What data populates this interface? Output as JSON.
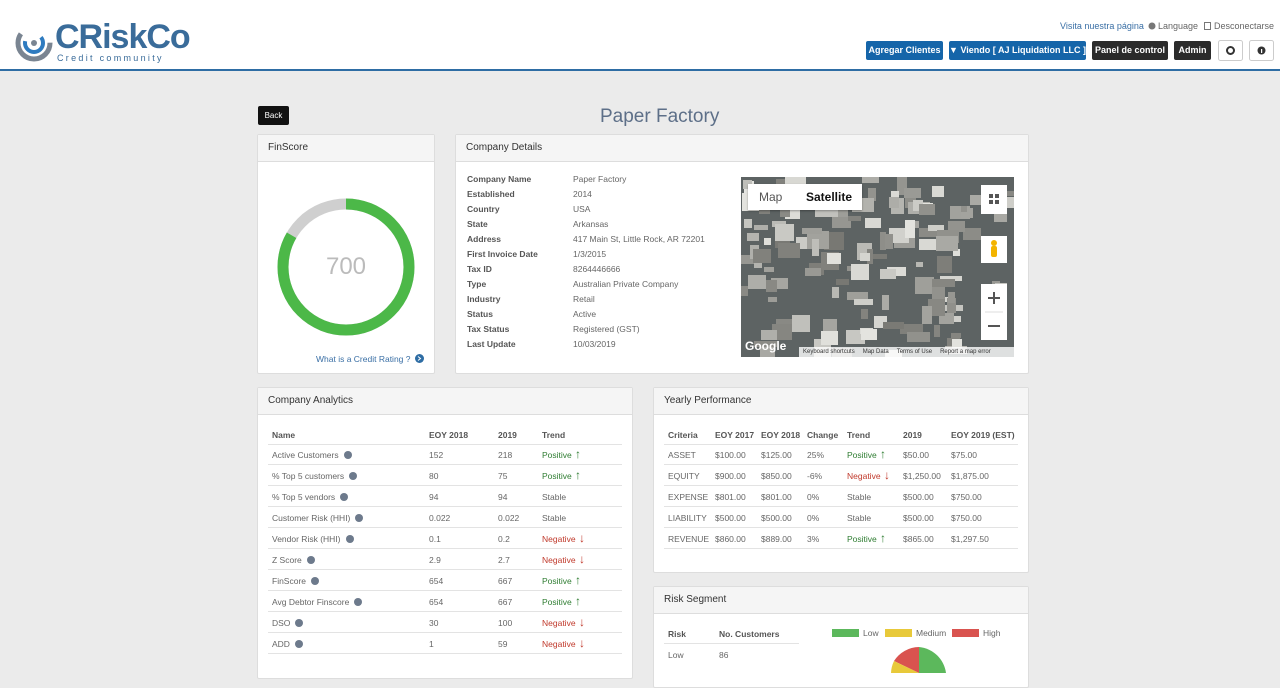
{
  "header": {
    "logo": "CRiskCo",
    "tagline": "Credit community",
    "links": [
      "Visita nuestra página",
      "Language",
      "Desconectarse"
    ],
    "buttons": [
      "Agregar Clientes",
      "▼ Viendo [ AJ Liquidation LLC ]",
      "Panel de control",
      "Admin"
    ]
  },
  "page": {
    "back": "Back",
    "title": "Paper Factory"
  },
  "finscore": {
    "title": "FinScore",
    "score": "700",
    "link": "What is a Credit Rating ?"
  },
  "company_details": {
    "title": "Company Details",
    "rows": [
      [
        "Company Name",
        "Paper Factory"
      ],
      [
        "Established",
        "2014"
      ],
      [
        "Country",
        "USA"
      ],
      [
        "State",
        "Arkansas"
      ],
      [
        "Address",
        "417 Main St, Little Rock, AR 72201"
      ],
      [
        "First Invoice Date",
        "1/3/2015"
      ],
      [
        "Tax ID",
        "8264446666"
      ],
      [
        "Type",
        "Australian Private Company"
      ],
      [
        "Industry",
        "Retail"
      ],
      [
        "Status",
        "Active"
      ],
      [
        "Tax Status",
        "Registered (GST)"
      ],
      [
        "Last Update",
        "10/03/2019"
      ]
    ]
  },
  "map": {
    "buttons": [
      "Map",
      "Satellite"
    ],
    "logo": "Google",
    "footer": [
      "Keyboard shortcuts",
      "Map Data",
      "Terms of Use",
      "Report a map error"
    ]
  },
  "analytics": {
    "title": "Company Analytics",
    "columns": [
      "Name",
      "EOY 2018",
      "2019",
      "Trend"
    ],
    "rows": [
      {
        "cells": [
          "Active Customers",
          "152",
          "218",
          "Positive"
        ],
        "arrow": "↑",
        "trend_color": "#2f7d32"
      },
      {
        "cells": [
          "% Top 5 customers",
          "80",
          "75",
          "Positive"
        ],
        "arrow": "↑",
        "trend_color": "#2f7d32"
      },
      {
        "cells": [
          "% Top 5 vendors",
          "94",
          "94",
          "Stable"
        ],
        "trend_color": "#666666"
      },
      {
        "cells": [
          "Customer Risk (HHI)",
          "0.022",
          "0.022",
          "Stable"
        ],
        "trend_color": "#666666"
      },
      {
        "cells": [
          "Vendor Risk (HHI)",
          "0.1",
          "0.2",
          "Negative"
        ],
        "arrow": "↓",
        "trend_color": "#c0392b"
      },
      {
        "cells": [
          "Z Score",
          "2.9",
          "2.7",
          "Negative"
        ],
        "arrow": "↓",
        "trend_color": "#c0392b"
      },
      {
        "cells": [
          "FinScore",
          "654",
          "667",
          "Positive"
        ],
        "arrow": "↑",
        "trend_color": "#2f7d32"
      },
      {
        "cells": [
          "Avg Debtor Finscore",
          "654",
          "667",
          "Positive"
        ],
        "arrow": "↑",
        "trend_color": "#2f7d32"
      },
      {
        "cells": [
          "DSO",
          "30",
          "100",
          "Negative"
        ],
        "arrow": "↓",
        "trend_color": "#c0392b"
      },
      {
        "cells": [
          "ADD",
          "1",
          "59",
          "Negative"
        ],
        "arrow": "↓",
        "trend_color": "#c0392b"
      }
    ]
  },
  "yearly": {
    "title": "Yearly Performance",
    "columns": [
      "Criteria",
      "EOY 2017",
      "EOY 2018",
      "Change",
      "Trend",
      "2019",
      "EOY 2019 (EST)"
    ],
    "rows": [
      {
        "cells": [
          "ASSET",
          "$100.00",
          "$125.00",
          "25%",
          "Positive",
          "$50.00",
          "$75.00"
        ],
        "arrow": "↑",
        "trend_color": "#2f7d32"
      },
      {
        "cells": [
          "EQUITY",
          "$900.00",
          "$850.00",
          "-6%",
          "Negative",
          "$1,250.00",
          "$1,875.00"
        ],
        "arrow": "↓",
        "trend_color": "#c0392b"
      },
      {
        "cells": [
          "EXPENSE",
          "$801.00",
          "$801.00",
          "0%",
          "Stable",
          "$500.00",
          "$750.00"
        ],
        "trend_color": "#666666"
      },
      {
        "cells": [
          "LIABILITY",
          "$500.00",
          "$500.00",
          "0%",
          "Stable",
          "$500.00",
          "$750.00"
        ],
        "trend_color": "#666666"
      },
      {
        "cells": [
          "REVENUE",
          "$860.00",
          "$889.00",
          "3%",
          "Positive",
          "$865.00",
          "$1,297.50"
        ],
        "arrow": "↑",
        "trend_color": "#2f7d32"
      }
    ]
  },
  "risk": {
    "title": "Risk Segment",
    "columns": [
      "Risk",
      "No. Customers"
    ],
    "rows": [
      [
        "Low",
        "86"
      ]
    ],
    "legend": [
      {
        "name": "Low",
        "color": "#5cb85c"
      },
      {
        "name": "Medium",
        "color": "#e8c93a"
      },
      {
        "name": "High",
        "color": "#d9534f"
      }
    ]
  }
}
